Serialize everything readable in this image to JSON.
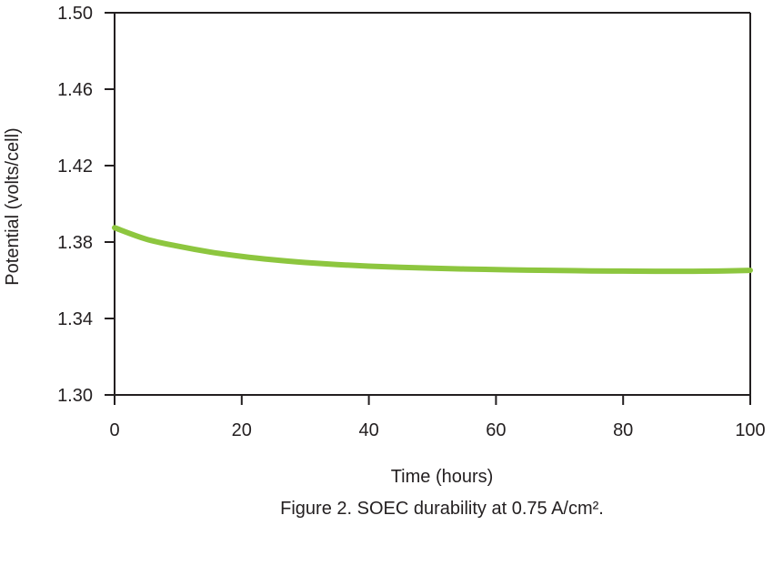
{
  "chart_data": {
    "type": "line",
    "title": "",
    "caption": "Figure 2. SOEC durability at 0.75 A/cm².",
    "xlabel": "Time (hours)",
    "ylabel": "Potential (volts/cell)",
    "xlim": [
      0,
      100
    ],
    "ylim": [
      1.3,
      1.5
    ],
    "x_ticks": [
      0,
      20,
      40,
      60,
      80,
      100
    ],
    "y_ticks": [
      1.3,
      1.34,
      1.38,
      1.42,
      1.46,
      1.5
    ],
    "x_tick_labels": [
      "0",
      "20",
      "40",
      "60",
      "80",
      "100"
    ],
    "y_tick_labels": [
      "1.30",
      "1.34",
      "1.38",
      "1.42",
      "1.46",
      "1.50"
    ],
    "grid": false,
    "line_color": "#8dc63f",
    "series": [
      {
        "x": [
          0,
          5,
          10,
          15,
          20,
          25,
          30,
          35,
          40,
          45,
          50,
          55,
          60,
          65,
          70,
          75,
          80,
          85,
          90,
          95,
          100
        ],
        "y": [
          1.3875,
          1.3815,
          1.3778,
          1.3748,
          1.3725,
          1.3707,
          1.3693,
          1.3682,
          1.3674,
          1.3668,
          1.3663,
          1.3659,
          1.3656,
          1.3653,
          1.3651,
          1.3649,
          1.3648,
          1.3647,
          1.3647,
          1.3648,
          1.3652
        ]
      }
    ]
  }
}
